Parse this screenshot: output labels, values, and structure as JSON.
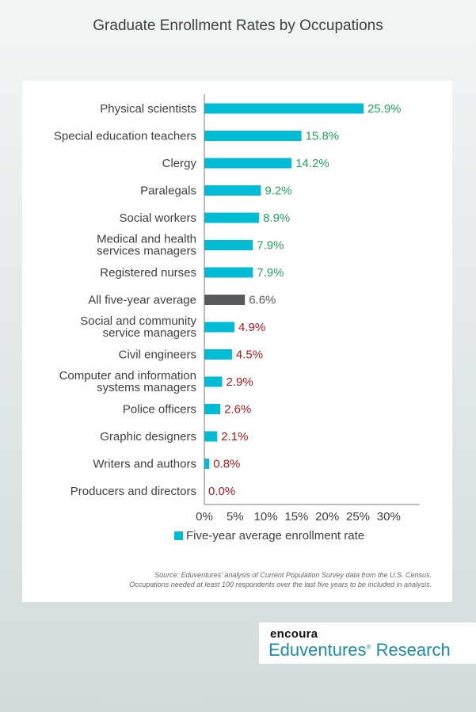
{
  "title": "Graduate Enrollment Rates by Occupations",
  "colors": {
    "bar": "#00bcd4",
    "average_bar": "#58595b",
    "label_high": "#1ea85a",
    "label_low": "#b4161b",
    "label_avg": "#58595b"
  },
  "chart_data": {
    "type": "bar",
    "orientation": "horizontal",
    "categories": [
      "Physical scientists",
      "Special education teachers",
      "Clergy",
      "Paralegals",
      "Social workers",
      "Medical and health services managers",
      "Registered nurses",
      "All five-year average",
      "Social and community service managers",
      "Civil engineers",
      "Computer and information systems managers",
      "Police officers",
      "Graphic designers",
      "Writers and authors",
      "Producers and directors"
    ],
    "category_lines": [
      [
        "Physical scientists"
      ],
      [
        "Special education teachers"
      ],
      [
        "Clergy"
      ],
      [
        "Paralegals"
      ],
      [
        "Social workers"
      ],
      [
        "Medical and health",
        "services managers"
      ],
      [
        "Registered nurses"
      ],
      [
        "All five-year average"
      ],
      [
        "Social and community",
        "service managers"
      ],
      [
        "Civil engineers"
      ],
      [
        "Computer and information",
        "systems managers"
      ],
      [
        "Police officers"
      ],
      [
        "Graphic designers"
      ],
      [
        "Writers and authors"
      ],
      [
        "Producers and directors"
      ]
    ],
    "values": [
      25.9,
      15.8,
      14.2,
      9.2,
      8.9,
      7.9,
      7.9,
      6.6,
      4.9,
      4.5,
      2.9,
      2.6,
      2.1,
      0.8,
      0.0
    ],
    "labels": [
      "25.9%",
      "15.8%",
      "14.2%",
      "9.2%",
      "8.9%",
      "7.9%",
      "7.9%",
      "6.6%",
      "4.9%",
      "4.5%",
      "2.9%",
      "2.6%",
      "2.1%",
      "0.8%",
      "0.0%"
    ],
    "highlight_index": 7,
    "xlim": [
      0,
      35
    ],
    "x_ticks": [
      0,
      5,
      10,
      15,
      20,
      25,
      30
    ],
    "x_tick_labels": [
      "0%",
      "5%",
      "10%",
      "15%",
      "20%",
      "25%",
      "30%"
    ],
    "grid": false,
    "legend": {
      "position": "bottom",
      "entries": [
        "Five-year average enrollment rate"
      ]
    }
  },
  "source": {
    "line1": "Source: Eduventures' analysis of Current Population Survey data from the U.S. Census.",
    "line2": "Occupations needed at least 100 respondents over the last five years to be included in analysis."
  },
  "logo": {
    "top": "encoura",
    "main": "Eduventures",
    "mark": "®",
    "suffix": "Research"
  }
}
